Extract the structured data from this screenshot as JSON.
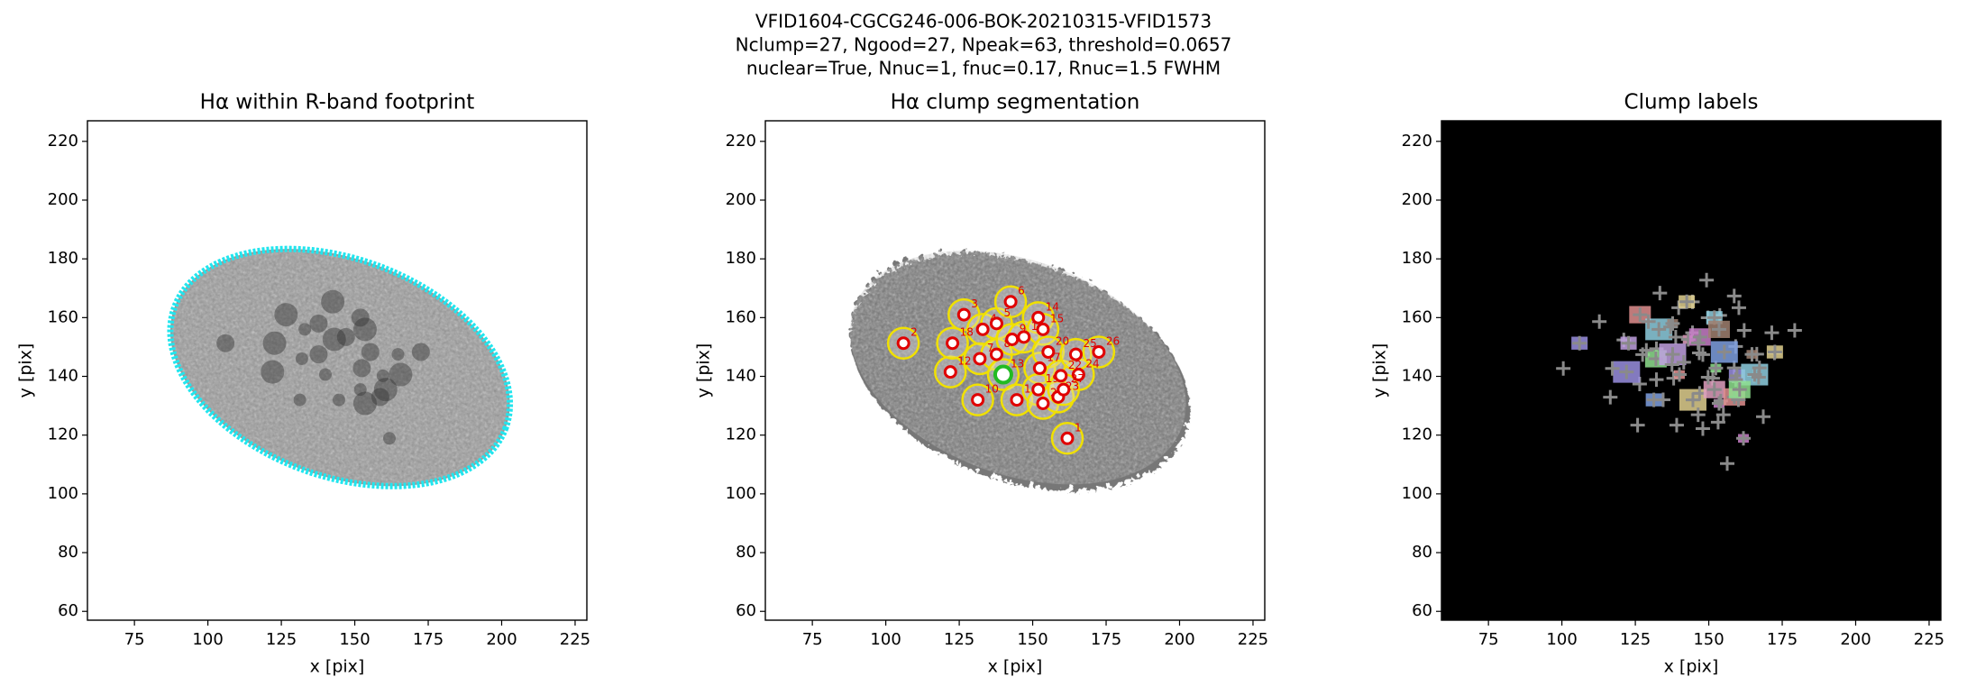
{
  "figure": {
    "title_lines": [
      "VFID1604-CGCG246-006-BOK-20210315-VFID1573",
      "Nclump=27, Ngood=27, Npeak=63, threshold=0.0657",
      "nuclear=True, Nnuc=1, fnuc=0.17, Rnuc=1.5 FWHM"
    ]
  },
  "chart_data": [
    {
      "type": "image",
      "style": "footprint",
      "title": "Hα within R-band footprint",
      "xlabel": "x [pix]",
      "ylabel": "y [pix]",
      "xlim": [
        59,
        229
      ],
      "ylim": [
        57,
        227
      ],
      "xticks": [
        75,
        100,
        125,
        150,
        175,
        200,
        225
      ],
      "yticks": [
        60,
        80,
        100,
        120,
        140,
        160,
        180,
        200,
        220
      ]
    },
    {
      "type": "image",
      "style": "segmentation",
      "title": "Hα clump segmentation",
      "xlabel": "x [pix]",
      "ylabel": "y [pix]",
      "xlim": [
        59,
        229
      ],
      "ylim": [
        57,
        227
      ],
      "xticks": [
        75,
        100,
        125,
        150,
        175,
        200,
        225
      ],
      "yticks": [
        60,
        80,
        100,
        120,
        140,
        160,
        180,
        200,
        220
      ],
      "clumps": {
        "x": [
          161.8,
          106,
          126.6,
          133,
          137.7,
          142.5,
          132,
          137.7,
          143,
          131.3,
          147,
          122,
          140,
          151.9,
          153.5,
          144.6,
          152.4,
          122.7,
          151.9,
          155.3,
          153.5,
          159.6,
          158.7,
          165.6,
          164.7,
          172.5,
          160.5
        ],
        "y": [
          118.9,
          151.3,
          161,
          156,
          158,
          165.4,
          146,
          147.5,
          152.6,
          132,
          153.4,
          141.5,
          140.6,
          160,
          156,
          132,
          142.8,
          151.3,
          135.5,
          148.3,
          130.8,
          140.2,
          133,
          140.6,
          147.5,
          148.3,
          135.5
        ],
        "labels": [
          "1",
          "2",
          "3",
          "4",
          "5",
          "6",
          "7",
          "8",
          "9",
          "10",
          "11",
          "12",
          "13",
          "14",
          "15",
          "16",
          "17",
          "18",
          "19",
          "20",
          "21",
          "22",
          "23",
          "24",
          "25",
          "26",
          "27"
        ]
      }
    },
    {
      "type": "image",
      "style": "labels",
      "title": "Clump labels",
      "xlabel": "x [pix]",
      "ylabel": "y [pix]",
      "xlim": [
        59,
        229
      ],
      "ylim": [
        57,
        227
      ],
      "xticks": [
        75,
        100,
        125,
        150,
        175,
        200,
        225
      ],
      "yticks": [
        60,
        80,
        100,
        120,
        140,
        160,
        180,
        200,
        220
      ]
    }
  ]
}
